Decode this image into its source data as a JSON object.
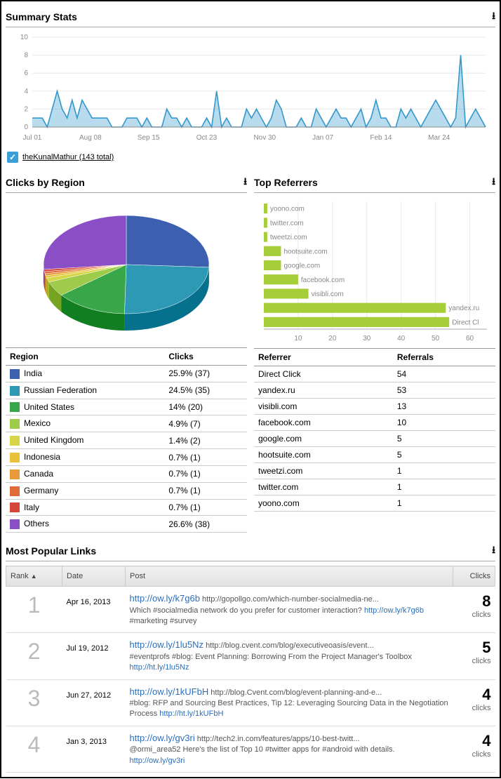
{
  "summary": {
    "title": "Summary Stats",
    "chart": {
      "type": "line",
      "ylim": [
        0,
        10
      ],
      "yticks": [
        0,
        2,
        4,
        6,
        8,
        10
      ],
      "xlabels": [
        "Jul 01",
        "Aug 08",
        "Sep 15",
        "Oct 23",
        "Nov 30",
        "Jan 07",
        "Feb 14",
        "Mar 24"
      ],
      "line_color": "#3399cc",
      "fill_color": "#3399cc",
      "grid_color": "#e8e8e8",
      "axis_color": "#888888",
      "label_color": "#888888",
      "label_fontsize": 10,
      "values": [
        1,
        1,
        1,
        0,
        2,
        4,
        2,
        1,
        3,
        1,
        3,
        2,
        1,
        1,
        1,
        1,
        0,
        0,
        0,
        1,
        1,
        1,
        0,
        1,
        0,
        0,
        0,
        2,
        1,
        1,
        0,
        1,
        0,
        0,
        0,
        1,
        0,
        4,
        0,
        1,
        0,
        0,
        0,
        2,
        1,
        2,
        1,
        0,
        1,
        3,
        2,
        0,
        0,
        0,
        1,
        0,
        0,
        2,
        1,
        0,
        1,
        2,
        1,
        1,
        0,
        1,
        2,
        0,
        1,
        3,
        1,
        1,
        0,
        0,
        2,
        1,
        2,
        1,
        0,
        1,
        2,
        3,
        2,
        1,
        0,
        1,
        8,
        0,
        1,
        2,
        1,
        0
      ]
    },
    "legend_label": "theKunalMathur (143 total)"
  },
  "regions": {
    "title": "Clicks by Region",
    "pie": {
      "type": "pie",
      "slices": [
        {
          "label": "India",
          "value": 25.9,
          "color": "#3d5fb0"
        },
        {
          "label": "Russian Federation",
          "value": 24.5,
          "color": "#2e99b5"
        },
        {
          "label": "United States",
          "value": 14.0,
          "color": "#3aa64a"
        },
        {
          "label": "Mexico",
          "value": 4.9,
          "color": "#9ecb4a"
        },
        {
          "label": "United Kingdom",
          "value": 1.4,
          "color": "#d6d646"
        },
        {
          "label": "Indonesia",
          "value": 0.7,
          "color": "#e8c23a"
        },
        {
          "label": "Canada",
          "value": 0.7,
          "color": "#e89a3a"
        },
        {
          "label": "Germany",
          "value": 0.7,
          "color": "#e06a3a"
        },
        {
          "label": "Italy",
          "value": 0.7,
          "color": "#d6453a"
        },
        {
          "label": "Others",
          "value": 26.6,
          "color": "#8a4fc4"
        }
      ]
    },
    "table": {
      "columns": [
        "Region",
        "Clicks"
      ],
      "rows": [
        {
          "swatch": "#3d5fb0",
          "name": "India",
          "clicks": "25.9% (37)"
        },
        {
          "swatch": "#2e99b5",
          "name": "Russian Federation",
          "clicks": "24.5% (35)"
        },
        {
          "swatch": "#3aa64a",
          "name": "United States",
          "clicks": "14% (20)"
        },
        {
          "swatch": "#9ecb4a",
          "name": "Mexico",
          "clicks": "4.9% (7)"
        },
        {
          "swatch": "#d6d646",
          "name": "United Kingdom",
          "clicks": "1.4% (2)"
        },
        {
          "swatch": "#e8c23a",
          "name": "Indonesia",
          "clicks": "0.7% (1)"
        },
        {
          "swatch": "#e89a3a",
          "name": "Canada",
          "clicks": "0.7% (1)"
        },
        {
          "swatch": "#e06a3a",
          "name": "Germany",
          "clicks": "0.7% (1)"
        },
        {
          "swatch": "#d6453a",
          "name": "Italy",
          "clicks": "0.7% (1)"
        },
        {
          "swatch": "#8a4fc4",
          "name": "Others",
          "clicks": "26.6% (38)"
        }
      ]
    }
  },
  "referrers": {
    "title": "Top Referrers",
    "bars": {
      "type": "bar-horizontal",
      "xlim": [
        0,
        65
      ],
      "xticks": [
        10,
        20,
        30,
        40,
        50,
        60
      ],
      "bar_color": "#a6ce39",
      "label_color": "#888888",
      "grid_color": "#e8e8e8",
      "label_fontsize": 10,
      "items": [
        {
          "label": "yoono.com",
          "value": 1
        },
        {
          "label": "twitter.com",
          "value": 1
        },
        {
          "label": "tweetzi.com",
          "value": 1
        },
        {
          "label": "hootsuite.com",
          "value": 5
        },
        {
          "label": "google.com",
          "value": 5
        },
        {
          "label": "facebook.com",
          "value": 10
        },
        {
          "label": "visibli.com",
          "value": 13
        },
        {
          "label": "yandex.ru",
          "value": 53
        },
        {
          "label": "Direct Cl",
          "value": 54
        }
      ]
    },
    "table": {
      "columns": [
        "Referrer",
        "Referrals"
      ],
      "rows": [
        {
          "name": "Direct Click",
          "value": "54"
        },
        {
          "name": "yandex.ru",
          "value": "53"
        },
        {
          "name": "visibli.com",
          "value": "13"
        },
        {
          "name": "facebook.com",
          "value": "10"
        },
        {
          "name": "google.com",
          "value": "5"
        },
        {
          "name": "hootsuite.com",
          "value": "5"
        },
        {
          "name": "tweetzi.com",
          "value": "1"
        },
        {
          "name": "twitter.com",
          "value": "1"
        },
        {
          "name": "yoono.com",
          "value": "1"
        }
      ]
    }
  },
  "popular": {
    "title": "Most Popular Links",
    "columns": [
      "Rank",
      "Date",
      "Post",
      "Clicks"
    ],
    "sort_indicator": "▲",
    "clicks_label": "clicks",
    "rows": [
      {
        "rank": "1",
        "date": "Apr 16, 2013",
        "main_link": "http://ow.ly/k7g6b",
        "sub_link": "http://gopollgo.com/which-number-socialmedia-ne...",
        "desc": "Which #socialmedia network do you prefer for customer interaction? http://ow.ly/k7g6b #marketing #survey",
        "clicks": "8"
      },
      {
        "rank": "2",
        "date": "Jul 19, 2012",
        "main_link": "http://ow.ly/1lu5Nz",
        "sub_link": "http://blog.cvent.com/blog/executiveoasis/event...",
        "desc": "#eventprofs #blog: Event Planning: Borrowing From the Project Manager's Toolbox http://ht.ly/1lu5Nz",
        "clicks": "5"
      },
      {
        "rank": "3",
        "date": "Jun 27, 2012",
        "main_link": "http://ow.ly/1kUFbH",
        "sub_link": "http://blog.Cvent.com/blog/event-planning-and-e...",
        "desc": "#blog: RFP and Sourcing Best Practices, Tip 12: Leveraging Sourcing Data in the Negotiation Process http://ht.ly/1kUFbH",
        "clicks": "4"
      },
      {
        "rank": "4",
        "date": "Jan 3, 2013",
        "main_link": "http://ow.ly/gv3ri",
        "sub_link": "http://tech2.in.com/features/apps/10-best-twitt...",
        "desc": "@ormi_area52 Here's the list of Top 10 #twitter apps for #android with details. http://ow.ly/gv3ri",
        "clicks": "4"
      }
    ]
  }
}
